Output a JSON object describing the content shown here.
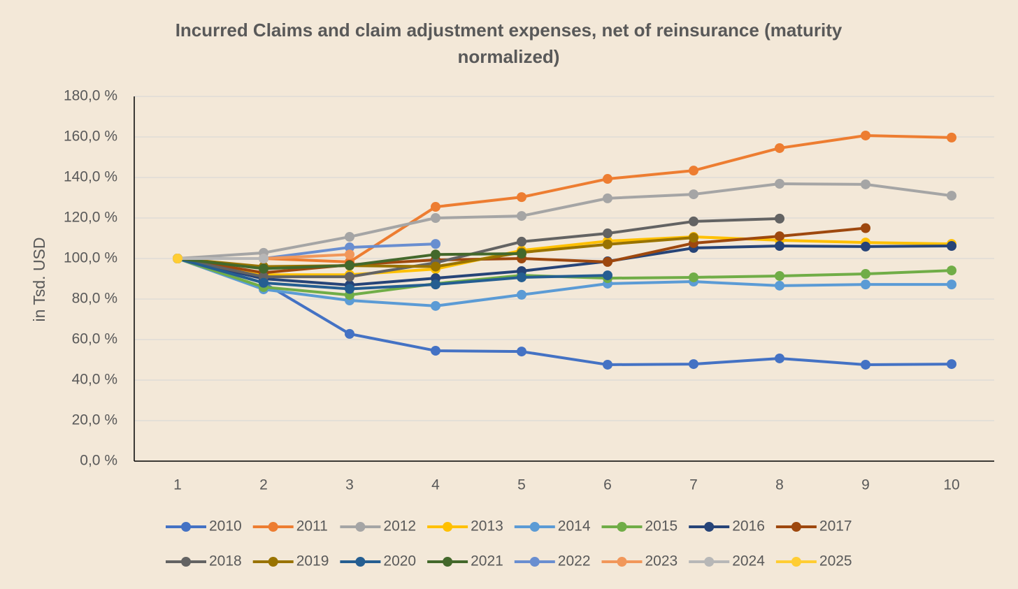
{
  "chart_data": {
    "type": "line",
    "title": "Incurred Claims and claim adjustment expenses, net of reinsurance (maturity normalized)",
    "y_label": "in Tsd. USD",
    "categories": [
      "1",
      "2",
      "3",
      "4",
      "5",
      "6",
      "7",
      "8",
      "9",
      "10"
    ],
    "ylim": [
      0,
      180
    ],
    "yticks": [
      {
        "value": 0,
        "label": "0,0 %"
      },
      {
        "value": 20,
        "label": "20,0 %"
      },
      {
        "value": 40,
        "label": "40,0 %"
      },
      {
        "value": 60,
        "label": "60,0 %"
      },
      {
        "value": 80,
        "label": "80,0 %"
      },
      {
        "value": 100,
        "label": "100,0 %"
      },
      {
        "value": 120,
        "label": "120,0 %"
      },
      {
        "value": 140,
        "label": "140,0 %"
      },
      {
        "value": 160,
        "label": "160,0 %"
      },
      {
        "value": 180,
        "label": "180,0 %"
      }
    ],
    "grid": true,
    "legend": "bottom",
    "series": [
      {
        "name": "2010",
        "color": "#4472c4",
        "values": [
          100,
          88,
          62.8,
          54.5,
          54.1,
          47.6,
          47.9,
          50.7,
          47.6,
          47.9
        ]
      },
      {
        "name": "2011",
        "color": "#ed7d31",
        "values": [
          100,
          100,
          98.3,
          125.5,
          130.3,
          139.3,
          143.4,
          154.5,
          160.7,
          159.7
        ]
      },
      {
        "name": "2012",
        "color": "#a5a5a5",
        "values": [
          100,
          102.8,
          110.7,
          120,
          121,
          129.7,
          131.7,
          136.9,
          136.6,
          131
        ]
      },
      {
        "name": "2013",
        "color": "#ffc000",
        "values": [
          100,
          92,
          92,
          94.8,
          104,
          108.6,
          110.7,
          109,
          107.9,
          107.2
        ]
      },
      {
        "name": "2014",
        "color": "#5b9bd5",
        "values": [
          100,
          84.8,
          79.3,
          76.6,
          82.1,
          87.6,
          88.6,
          86.6,
          87.2,
          87.2
        ]
      },
      {
        "name": "2015",
        "color": "#70ad47",
        "values": [
          100,
          85.9,
          82,
          87.6,
          91.7,
          90.3,
          90.7,
          91.4,
          92.4,
          94.1
        ]
      },
      {
        "name": "2016",
        "color": "#264478",
        "values": [
          100,
          90,
          86.9,
          90.3,
          93.8,
          98.6,
          105.2,
          106.2,
          105.9,
          106.2
        ]
      },
      {
        "name": "2017",
        "color": "#9e480e",
        "values": [
          100,
          93,
          96.9,
          99.3,
          100,
          98.3,
          107.6,
          111,
          115,
          null
        ]
      },
      {
        "name": "2018",
        "color": "#636363",
        "values": [
          100,
          91,
          91,
          97.9,
          108.3,
          112.4,
          118.3,
          119.7,
          null,
          null
        ]
      },
      {
        "name": "2019",
        "color": "#997300",
        "values": [
          100,
          96,
          96.5,
          96,
          103,
          107,
          110.3,
          null,
          null,
          null
        ]
      },
      {
        "name": "2020",
        "color": "#255e91",
        "values": [
          100,
          88,
          85,
          87.2,
          90.7,
          91.7,
          null,
          null,
          null,
          null
        ]
      },
      {
        "name": "2021",
        "color": "#43682b",
        "values": [
          100,
          95,
          96.6,
          102,
          102.4,
          null,
          null,
          null,
          null,
          null
        ]
      },
      {
        "name": "2022",
        "color": "#698ed0",
        "values": [
          100,
          100,
          105.5,
          107.2,
          null,
          null,
          null,
          null,
          null,
          null
        ]
      },
      {
        "name": "2023",
        "color": "#f1975a",
        "values": [
          100,
          100,
          102,
          null,
          null,
          null,
          null,
          null,
          null,
          null
        ]
      },
      {
        "name": "2024",
        "color": "#b7b7b7",
        "values": [
          100,
          100,
          null,
          null,
          null,
          null,
          null,
          null,
          null,
          null
        ]
      },
      {
        "name": "2025",
        "color": "#ffcd33",
        "values": [
          100,
          null,
          null,
          null,
          null,
          null,
          null,
          null,
          null,
          null
        ]
      }
    ]
  }
}
